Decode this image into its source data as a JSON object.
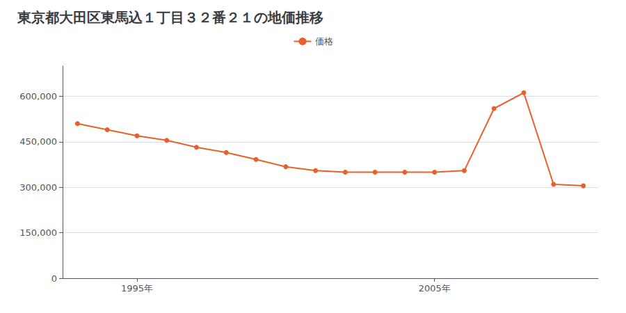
{
  "chart_data": {
    "type": "line",
    "title": "東京都大田区東馬込１丁目３２番２１の地価推移",
    "x": [
      1993,
      1994,
      1995,
      1996,
      1997,
      1998,
      1999,
      2000,
      2001,
      2002,
      2003,
      2004,
      2005,
      2006,
      2007,
      2008,
      2009,
      2010
    ],
    "series": [
      {
        "name": "価格",
        "color": "#e8612c",
        "marker": "circle",
        "values": [
          510000,
          490000,
          470000,
          455000,
          432000,
          415000,
          392000,
          368000,
          355000,
          350000,
          350000,
          350000,
          350000,
          355000,
          560000,
          612000,
          310000,
          305000
        ]
      }
    ],
    "xlim": [
      1992.5,
      2010.5
    ],
    "xticks": [
      {
        "value": 1995,
        "label": "1995年"
      },
      {
        "value": 2005,
        "label": "2005年"
      }
    ],
    "ylim": [
      0,
      700000
    ],
    "yticks": [
      0,
      {
        "value": 150000,
        "label": "150,000"
      },
      {
        "value": 300000,
        "label": "300,000"
      },
      {
        "value": 450000,
        "label": "450,000"
      },
      {
        "value": 600000,
        "label": "600,000"
      }
    ],
    "grid": "y",
    "legend": "top"
  }
}
